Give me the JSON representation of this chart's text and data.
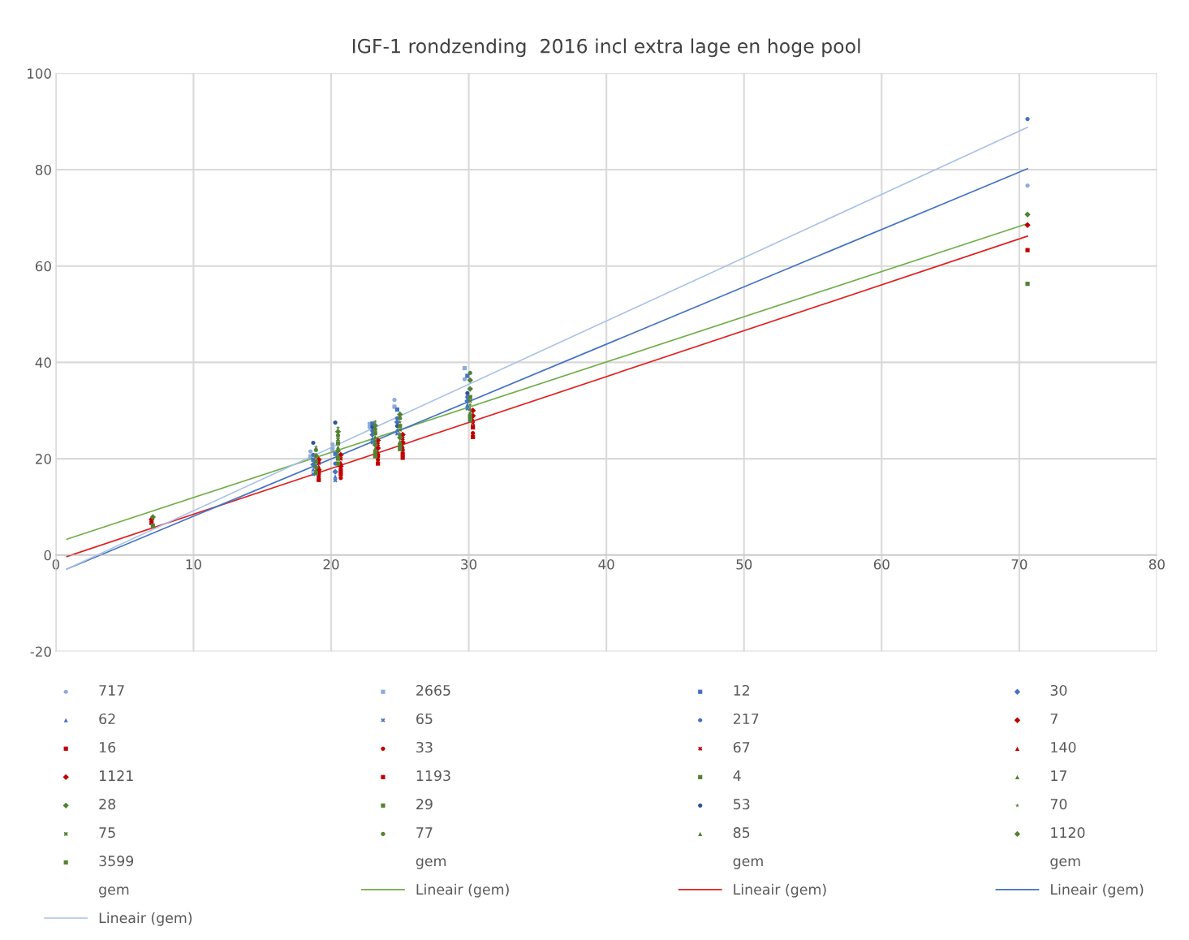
{
  "chart_data": {
    "type": "scatter",
    "title": "IGF-1 rondzending  2016 incl extra lage en hoge pool",
    "xlim": [
      0,
      80
    ],
    "xticks": [
      0,
      10,
      20,
      30,
      40,
      50,
      60,
      70,
      80
    ],
    "ylim": [
      -20,
      100
    ],
    "yticks": [
      -20,
      0,
      20,
      40,
      60,
      80,
      100
    ],
    "grid": true,
    "legend": "bottom",
    "series": [
      {
        "name": "717",
        "color": "#8faadc",
        "marker": "circle",
        "x": [
          18.5,
          20.1,
          22.8,
          24.6,
          29.7,
          70.6
        ],
        "values": [
          21.5,
          23,
          26.5,
          32.2,
          36.5,
          76.7
        ]
      },
      {
        "name": "2665",
        "color": "#8faadc",
        "marker": "square",
        "x": [
          18.5,
          20.1,
          22.8,
          24.6,
          29.7
        ],
        "values": [
          20.5,
          22,
          27.2,
          30.8,
          38.8
        ]
      },
      {
        "name": "12",
        "color": "#4472c4",
        "marker": "square",
        "x": [
          18.7,
          20.3,
          23.0,
          24.8,
          29.9
        ],
        "values": [
          19.8,
          21,
          27.3,
          30.2,
          37.2
        ]
      },
      {
        "name": "30",
        "color": "#4472c4",
        "marker": "diamond",
        "x": [
          18.7,
          20.3,
          23.0,
          24.8,
          29.9
        ],
        "values": [
          18.8,
          17.3,
          25,
          27.6,
          32.0
        ]
      },
      {
        "name": "62",
        "color": "#4472c4",
        "marker": "triangle",
        "x": [
          18.7,
          20.3,
          23.0,
          24.8,
          29.9
        ],
        "values": [
          17.8,
          16.3,
          24.2,
          26.0,
          31.2
        ]
      },
      {
        "name": "65",
        "color": "#4472c4",
        "marker": "cross",
        "x": [
          18.7,
          20.3,
          23.0,
          24.8,
          29.9
        ],
        "values": [
          16.8,
          15.5,
          23.4,
          25.2,
          30.4
        ]
      },
      {
        "name": "217",
        "color": "#4472c4",
        "marker": "circle",
        "x": [
          18.7,
          20.3,
          23.0,
          24.8,
          29.9,
          70.6
        ],
        "values": [
          20.8,
          19,
          25.8,
          28.4,
          32.8,
          90.5
        ]
      },
      {
        "name": "7",
        "color": "#c00000",
        "marker": "diamond",
        "x": [
          19.1,
          20.7,
          23.4,
          25.2,
          30.3
        ],
        "values": [
          17.7,
          18.4,
          22.2,
          23.4,
          28.9
        ]
      },
      {
        "name": "16",
        "color": "#c00000",
        "marker": "square",
        "x": [
          6.95,
          19.1,
          20.7,
          23.4,
          25.2,
          30.3,
          70.6
        ],
        "values": [
          6.7,
          15.6,
          16.8,
          19.0,
          20.2,
          24.5,
          63.3
        ]
      },
      {
        "name": "33",
        "color": "#c00000",
        "marker": "circle",
        "x": [
          19.1,
          20.7,
          23.4,
          25.2,
          30.3
        ],
        "values": [
          16.3,
          16.0,
          19.8,
          21.8,
          25.3
        ]
      },
      {
        "name": "67",
        "color": "#c00000",
        "marker": "cross",
        "x": [
          19.1,
          20.7,
          23.4,
          25.2,
          30.3
        ],
        "values": [
          19.1,
          20.0,
          23.0,
          24.2,
          27.3
        ]
      },
      {
        "name": "140",
        "color": "#c00000",
        "marker": "triangle",
        "x": [
          19.1,
          20.7,
          23.4,
          25.2,
          30.3
        ],
        "values": [
          18.4,
          19.2,
          21.4,
          22.6,
          28.1
        ]
      },
      {
        "name": "1121",
        "color": "#c00000",
        "marker": "diamond",
        "x": [
          6.95,
          19.1,
          20.7,
          23.4,
          25.2,
          30.3,
          70.6
        ],
        "values": [
          7.4,
          19.8,
          20.8,
          23.8,
          25.0,
          30.0,
          68.5
        ]
      },
      {
        "name": "1193",
        "color": "#c00000",
        "marker": "square",
        "x": [
          19.1,
          20.7,
          23.4,
          25.2,
          30.3
        ],
        "values": [
          17.0,
          17.6,
          20.6,
          21.0,
          26.5
        ]
      },
      {
        "name": "4",
        "color": "#548235",
        "marker": "square",
        "x": [
          20.5,
          23.2,
          25.0,
          30.1
        ],
        "values": [
          20.0,
          21.3,
          22.8,
          28.8
        ]
      },
      {
        "name": "17",
        "color": "#548235",
        "marker": "triangle",
        "x": [
          20.5,
          23.2,
          25.0,
          30.1
        ],
        "values": [
          22.4,
          24.5,
          25.2,
          30.4
        ]
      },
      {
        "name": "28",
        "color": "#548235",
        "marker": "diamond",
        "x": [
          7.05,
          18.9,
          20.5,
          23.2,
          25.0,
          30.1,
          70.6
        ],
        "values": [
          7.9,
          18.2,
          21.6,
          22.9,
          24.4,
          34.5,
          70.7
        ]
      },
      {
        "name": "29",
        "color": "#548235",
        "marker": "square",
        "x": [
          7.05,
          18.9,
          20.5,
          23.2,
          25.0,
          30.1,
          70.6
        ],
        "values": [
          6.1,
          17.0,
          19.0,
          20.5,
          22.0,
          28.0,
          56.3
        ]
      },
      {
        "name": "53",
        "color": "#2f5597",
        "marker": "circle",
        "x": [
          18.7,
          20.3,
          23.0,
          24.8,
          29.9
        ],
        "values": [
          23.3,
          27.5,
          26.6,
          26.8,
          33.6
        ]
      },
      {
        "name": "70",
        "color": "#548235",
        "marker": "star",
        "x": [
          18.9,
          20.5,
          23.2,
          25.0,
          30.1
        ],
        "values": [
          22.4,
          26.4,
          27.7,
          27.6,
          31.2
        ]
      },
      {
        "name": "75",
        "color": "#548235",
        "marker": "cross",
        "x": [
          20.5,
          23.2,
          25.0,
          30.1
        ],
        "values": [
          24.0,
          23.7,
          26.0,
          32.0
        ]
      },
      {
        "name": "77",
        "color": "#548235",
        "marker": "circle",
        "x": [
          18.9,
          20.5,
          23.2,
          25.0,
          30.1
        ],
        "values": [
          21.8,
          24.8,
          26.1,
          28.4,
          37.8
        ]
      },
      {
        "name": "85",
        "color": "#548235",
        "marker": "triangle",
        "x": [
          18.9,
          20.5,
          23.2,
          25.0,
          30.1
        ],
        "values": [
          17.6,
          20.8,
          22.1,
          23.6,
          29.6
        ]
      },
      {
        "name": "1120",
        "color": "#548235",
        "marker": "diamond",
        "x": [
          18.9,
          20.5,
          23.2,
          25.0,
          30.1
        ],
        "values": [
          20.6,
          25.6,
          26.9,
          29.2,
          36.3
        ]
      },
      {
        "name": "3599",
        "color": "#548235",
        "marker": "square",
        "x": [
          18.9,
          20.5,
          23.2,
          25.0,
          30.1
        ],
        "values": [
          19.4,
          23.2,
          25.3,
          26.8,
          32.8
        ]
      },
      {
        "name": "gem",
        "marker": "none"
      },
      {
        "name": "gem",
        "marker": "none"
      },
      {
        "name": "gem",
        "marker": "none"
      },
      {
        "name": "gem",
        "marker": "none"
      },
      {
        "name": "Lineair (gem)",
        "type": "line",
        "color": "#70ad47",
        "x": [
          0.8,
          70.6
        ],
        "values": [
          3.3,
          68.8
        ]
      },
      {
        "name": "Lineair (gem)",
        "type": "line",
        "color": "#e02020",
        "x": [
          0.8,
          70.6
        ],
        "values": [
          -0.3,
          66.2
        ]
      },
      {
        "name": "Lineair (gem)",
        "type": "line",
        "color": "#4472c4",
        "x": [
          0.8,
          70.6
        ],
        "values": [
          -2.9,
          80.2
        ]
      },
      {
        "name": "Lineair (gem)",
        "type": "line",
        "color": "#a9c1e8",
        "x": [
          0.8,
          70.6
        ],
        "values": [
          -2.9,
          88.8
        ]
      }
    ]
  }
}
